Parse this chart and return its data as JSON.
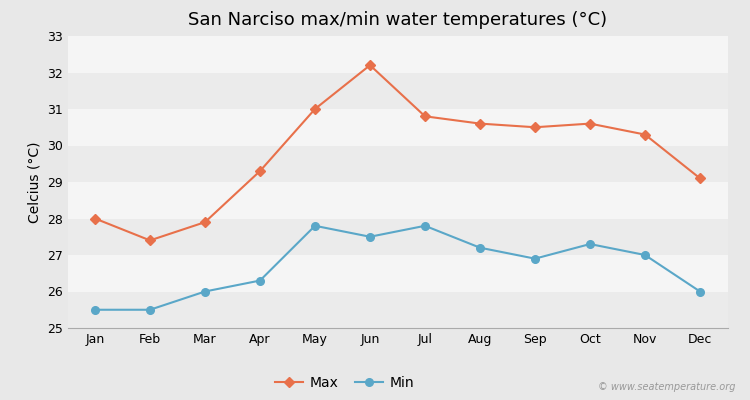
{
  "title": "San Narciso max/min water temperatures (°C)",
  "ylabel": "Celcius (°C)",
  "months": [
    "Jan",
    "Feb",
    "Mar",
    "Apr",
    "May",
    "Jun",
    "Jul",
    "Aug",
    "Sep",
    "Oct",
    "Nov",
    "Dec"
  ],
  "max_temps": [
    28.0,
    27.4,
    27.9,
    29.3,
    31.0,
    32.2,
    30.8,
    30.6,
    30.5,
    30.6,
    30.3,
    29.1
  ],
  "min_temps": [
    25.5,
    25.5,
    26.0,
    26.3,
    27.8,
    27.5,
    27.8,
    27.2,
    26.9,
    27.3,
    27.0,
    26.0
  ],
  "max_color": "#e8704a",
  "min_color": "#5aa7c8",
  "fig_bg_color": "#e8e8e8",
  "band_colors": [
    "#ebebeb",
    "#f5f5f5"
  ],
  "ylim": [
    25,
    33
  ],
  "yticks": [
    25,
    26,
    27,
    28,
    29,
    30,
    31,
    32,
    33
  ],
  "legend_labels": [
    "Max",
    "Min"
  ],
  "watermark": "© www.seatemperature.org",
  "title_fontsize": 13,
  "axis_label_fontsize": 10,
  "tick_fontsize": 9,
  "legend_fontsize": 10
}
